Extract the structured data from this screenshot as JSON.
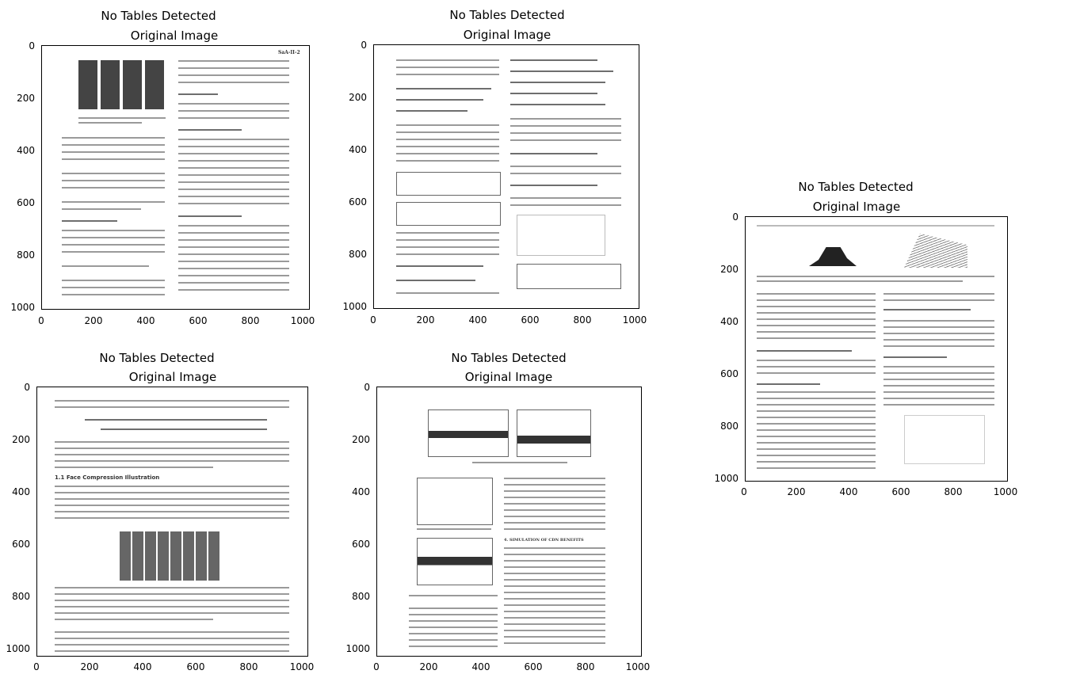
{
  "panels": [
    {
      "title": "No Tables Detected",
      "subtitle": "Original Image",
      "yticks": [
        "0",
        "200",
        "400",
        "600",
        "800",
        "1000"
      ],
      "xticks": [
        "0",
        "200",
        "400",
        "600",
        "800",
        "1000"
      ],
      "header_text": "SaA-II-2"
    },
    {
      "title": "No Tables Detected",
      "subtitle": "Original Image",
      "yticks": [
        "0",
        "200",
        "400",
        "600",
        "800",
        "1000"
      ],
      "xticks": [
        "0",
        "200",
        "400",
        "600",
        "800",
        "1000"
      ]
    },
    {
      "title": "No Tables Detected",
      "subtitle": "Original Image",
      "yticks": [
        "0",
        "200",
        "400",
        "600",
        "800",
        "1000"
      ],
      "xticks": [
        "0",
        "200",
        "400",
        "600",
        "800",
        "1000"
      ]
    },
    {
      "title": "No Tables Detected",
      "subtitle": "Original Image",
      "yticks": [
        "0",
        "200",
        "400",
        "600",
        "800",
        "1000"
      ],
      "xticks": [
        "0",
        "200",
        "400",
        "600",
        "800",
        "1000"
      ],
      "section_heading": "1.1 Face Compression Illustration"
    },
    {
      "title": "No Tables Detected",
      "subtitle": "Original Image",
      "yticks": [
        "0",
        "200",
        "400",
        "600",
        "800",
        "1000"
      ],
      "xticks": [
        "0",
        "200",
        "400",
        "600",
        "800",
        "1000"
      ],
      "section_heading": "4. SIMULATION OF CDN BENEFITS"
    }
  ]
}
